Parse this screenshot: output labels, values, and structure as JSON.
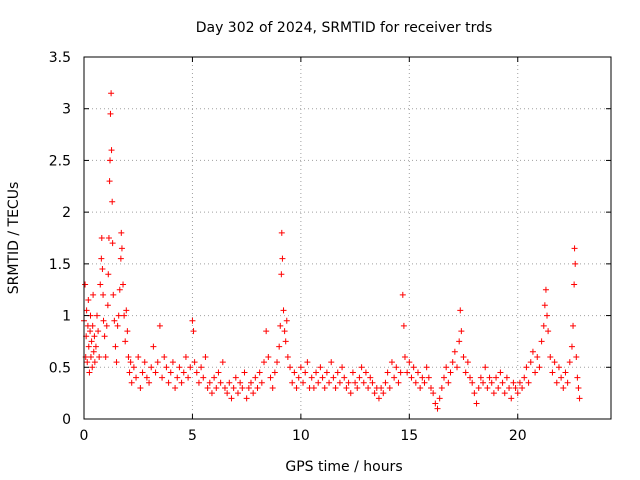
{
  "chart_data": {
    "type": "scatter",
    "title": "Day 302 of 2024, SRMTID for receiver trds",
    "xlabel": "GPS time / hours",
    "ylabel": "SRMTID / TECUs",
    "xlim": [
      0,
      24.3
    ],
    "ylim": [
      0,
      3.5
    ],
    "xticks": [
      "0",
      "5",
      "10",
      "15",
      "20"
    ],
    "xtick_values": [
      0,
      5,
      10,
      15,
      20
    ],
    "yticks": [
      "0",
      "0.5",
      "1",
      "1.5",
      "2",
      "2.5",
      "3",
      "3.5"
    ],
    "ytick_values": [
      0,
      0.5,
      1,
      1.5,
      2,
      2.5,
      3,
      3.5
    ],
    "grid": true,
    "marker": "+",
    "color": "#ff0000",
    "series": [
      {
        "name": "SRMTID",
        "points": [
          [
            0.0,
            0.95
          ],
          [
            0.05,
            1.3
          ],
          [
            0.08,
            0.6
          ],
          [
            0.1,
            0.8
          ],
          [
            0.12,
            1.05
          ],
          [
            0.15,
            0.55
          ],
          [
            0.18,
            0.9
          ],
          [
            0.2,
            1.15
          ],
          [
            0.22,
            0.7
          ],
          [
            0.25,
            0.45
          ],
          [
            0.28,
            0.85
          ],
          [
            0.3,
            1.0
          ],
          [
            0.32,
            0.6
          ],
          [
            0.35,
            0.75
          ],
          [
            0.38,
            0.5
          ],
          [
            0.4,
            0.9
          ],
          [
            0.42,
            1.2
          ],
          [
            0.45,
            0.65
          ],
          [
            0.48,
            0.8
          ],
          [
            0.5,
            0.55
          ],
          [
            0.55,
            0.7
          ],
          [
            0.6,
            1.0
          ],
          [
            0.65,
            0.85
          ],
          [
            0.7,
            0.6
          ],
          [
            0.75,
            1.3
          ],
          [
            0.8,
            1.55
          ],
          [
            0.82,
            1.75
          ],
          [
            0.85,
            1.45
          ],
          [
            0.88,
            1.2
          ],
          [
            0.9,
            0.95
          ],
          [
            0.95,
            0.8
          ],
          [
            1.0,
            0.6
          ],
          [
            1.05,
            0.9
          ],
          [
            1.1,
            1.1
          ],
          [
            1.12,
            1.4
          ],
          [
            1.15,
            1.75
          ],
          [
            1.18,
            2.3
          ],
          [
            1.2,
            2.5
          ],
          [
            1.22,
            2.95
          ],
          [
            1.25,
            3.15
          ],
          [
            1.27,
            2.6
          ],
          [
            1.3,
            2.1
          ],
          [
            1.32,
            1.7
          ],
          [
            1.35,
            1.2
          ],
          [
            1.4,
            0.95
          ],
          [
            1.45,
            0.7
          ],
          [
            1.5,
            0.55
          ],
          [
            1.55,
            0.9
          ],
          [
            1.6,
            1.0
          ],
          [
            1.65,
            1.25
          ],
          [
            1.7,
            1.55
          ],
          [
            1.72,
            1.8
          ],
          [
            1.75,
            1.65
          ],
          [
            1.8,
            1.3
          ],
          [
            1.85,
            1.0
          ],
          [
            1.9,
            0.75
          ],
          [
            1.95,
            1.05
          ],
          [
            2.0,
            0.85
          ],
          [
            2.05,
            0.6
          ],
          [
            2.1,
            0.45
          ],
          [
            2.15,
            0.55
          ],
          [
            2.2,
            0.35
          ],
          [
            2.3,
            0.5
          ],
          [
            2.4,
            0.4
          ],
          [
            2.5,
            0.6
          ],
          [
            2.6,
            0.3
          ],
          [
            2.7,
            0.45
          ],
          [
            2.8,
            0.55
          ],
          [
            2.9,
            0.4
          ],
          [
            3.0,
            0.35
          ],
          [
            3.1,
            0.5
          ],
          [
            3.2,
            0.7
          ],
          [
            3.3,
            0.45
          ],
          [
            3.4,
            0.55
          ],
          [
            3.5,
            0.9
          ],
          [
            3.6,
            0.4
          ],
          [
            3.7,
            0.6
          ],
          [
            3.8,
            0.5
          ],
          [
            3.9,
            0.35
          ],
          [
            4.0,
            0.45
          ],
          [
            4.1,
            0.55
          ],
          [
            4.2,
            0.3
          ],
          [
            4.3,
            0.4
          ],
          [
            4.4,
            0.5
          ],
          [
            4.5,
            0.35
          ],
          [
            4.6,
            0.45
          ],
          [
            4.7,
            0.6
          ],
          [
            4.8,
            0.4
          ],
          [
            4.9,
            0.5
          ],
          [
            5.0,
            0.95
          ],
          [
            5.05,
            0.85
          ],
          [
            5.1,
            0.55
          ],
          [
            5.2,
            0.45
          ],
          [
            5.3,
            0.35
          ],
          [
            5.4,
            0.5
          ],
          [
            5.5,
            0.4
          ],
          [
            5.6,
            0.6
          ],
          [
            5.7,
            0.3
          ],
          [
            5.8,
            0.35
          ],
          [
            5.9,
            0.25
          ],
          [
            6.0,
            0.4
          ],
          [
            6.1,
            0.3
          ],
          [
            6.2,
            0.45
          ],
          [
            6.3,
            0.35
          ],
          [
            6.4,
            0.55
          ],
          [
            6.5,
            0.3
          ],
          [
            6.6,
            0.25
          ],
          [
            6.7,
            0.35
          ],
          [
            6.8,
            0.2
          ],
          [
            6.9,
            0.3
          ],
          [
            7.0,
            0.4
          ],
          [
            7.1,
            0.25
          ],
          [
            7.2,
            0.35
          ],
          [
            7.3,
            0.3
          ],
          [
            7.4,
            0.45
          ],
          [
            7.5,
            0.2
          ],
          [
            7.6,
            0.3
          ],
          [
            7.7,
            0.35
          ],
          [
            7.8,
            0.25
          ],
          [
            7.9,
            0.4
          ],
          [
            8.0,
            0.3
          ],
          [
            8.1,
            0.45
          ],
          [
            8.2,
            0.35
          ],
          [
            8.3,
            0.55
          ],
          [
            8.4,
            0.85
          ],
          [
            8.5,
            0.6
          ],
          [
            8.6,
            0.4
          ],
          [
            8.7,
            0.3
          ],
          [
            8.8,
            0.45
          ],
          [
            8.9,
            0.55
          ],
          [
            9.0,
            0.7
          ],
          [
            9.05,
            0.9
          ],
          [
            9.1,
            1.4
          ],
          [
            9.12,
            1.8
          ],
          [
            9.15,
            1.55
          ],
          [
            9.2,
            1.05
          ],
          [
            9.25,
            0.85
          ],
          [
            9.3,
            0.75
          ],
          [
            9.35,
            0.95
          ],
          [
            9.4,
            0.6
          ],
          [
            9.5,
            0.5
          ],
          [
            9.6,
            0.35
          ],
          [
            9.7,
            0.45
          ],
          [
            9.8,
            0.3
          ],
          [
            9.9,
            0.4
          ],
          [
            10.0,
            0.5
          ],
          [
            10.1,
            0.35
          ],
          [
            10.2,
            0.45
          ],
          [
            10.3,
            0.55
          ],
          [
            10.4,
            0.3
          ],
          [
            10.5,
            0.4
          ],
          [
            10.6,
            0.3
          ],
          [
            10.7,
            0.45
          ],
          [
            10.8,
            0.35
          ],
          [
            10.9,
            0.5
          ],
          [
            11.0,
            0.4
          ],
          [
            11.1,
            0.3
          ],
          [
            11.2,
            0.45
          ],
          [
            11.3,
            0.35
          ],
          [
            11.4,
            0.55
          ],
          [
            11.5,
            0.4
          ],
          [
            11.6,
            0.3
          ],
          [
            11.7,
            0.45
          ],
          [
            11.8,
            0.35
          ],
          [
            11.9,
            0.5
          ],
          [
            12.0,
            0.4
          ],
          [
            12.1,
            0.3
          ],
          [
            12.2,
            0.35
          ],
          [
            12.3,
            0.25
          ],
          [
            12.4,
            0.45
          ],
          [
            12.5,
            0.35
          ],
          [
            12.6,
            0.3
          ],
          [
            12.7,
            0.4
          ],
          [
            12.8,
            0.5
          ],
          [
            12.9,
            0.35
          ],
          [
            13.0,
            0.45
          ],
          [
            13.1,
            0.3
          ],
          [
            13.2,
            0.4
          ],
          [
            13.3,
            0.35
          ],
          [
            13.4,
            0.25
          ],
          [
            13.5,
            0.3
          ],
          [
            13.6,
            0.2
          ],
          [
            13.7,
            0.3
          ],
          [
            13.8,
            0.25
          ],
          [
            13.9,
            0.35
          ],
          [
            14.0,
            0.45
          ],
          [
            14.1,
            0.3
          ],
          [
            14.2,
            0.55
          ],
          [
            14.3,
            0.4
          ],
          [
            14.4,
            0.5
          ],
          [
            14.5,
            0.35
          ],
          [
            14.6,
            0.45
          ],
          [
            14.7,
            1.2
          ],
          [
            14.75,
            0.9
          ],
          [
            14.8,
            0.6
          ],
          [
            14.9,
            0.45
          ],
          [
            15.0,
            0.55
          ],
          [
            15.1,
            0.4
          ],
          [
            15.2,
            0.5
          ],
          [
            15.3,
            0.35
          ],
          [
            15.4,
            0.45
          ],
          [
            15.5,
            0.3
          ],
          [
            15.6,
            0.4
          ],
          [
            15.7,
            0.35
          ],
          [
            15.8,
            0.5
          ],
          [
            15.9,
            0.4
          ],
          [
            16.0,
            0.3
          ],
          [
            16.1,
            0.25
          ],
          [
            16.2,
            0.15
          ],
          [
            16.3,
            0.1
          ],
          [
            16.4,
            0.2
          ],
          [
            16.5,
            0.3
          ],
          [
            16.6,
            0.4
          ],
          [
            16.7,
            0.5
          ],
          [
            16.8,
            0.35
          ],
          [
            16.9,
            0.45
          ],
          [
            17.0,
            0.55
          ],
          [
            17.1,
            0.65
          ],
          [
            17.2,
            0.5
          ],
          [
            17.3,
            0.75
          ],
          [
            17.35,
            1.05
          ],
          [
            17.4,
            0.85
          ],
          [
            17.5,
            0.6
          ],
          [
            17.6,
            0.45
          ],
          [
            17.7,
            0.55
          ],
          [
            17.8,
            0.4
          ],
          [
            17.9,
            0.35
          ],
          [
            18.0,
            0.25
          ],
          [
            18.1,
            0.15
          ],
          [
            18.2,
            0.3
          ],
          [
            18.3,
            0.4
          ],
          [
            18.4,
            0.35
          ],
          [
            18.5,
            0.5
          ],
          [
            18.6,
            0.3
          ],
          [
            18.7,
            0.4
          ],
          [
            18.8,
            0.35
          ],
          [
            18.9,
            0.25
          ],
          [
            19.0,
            0.4
          ],
          [
            19.1,
            0.3
          ],
          [
            19.2,
            0.45
          ],
          [
            19.3,
            0.35
          ],
          [
            19.4,
            0.25
          ],
          [
            19.5,
            0.4
          ],
          [
            19.6,
            0.3
          ],
          [
            19.7,
            0.2
          ],
          [
            19.8,
            0.35
          ],
          [
            19.9,
            0.3
          ],
          [
            20.0,
            0.25
          ],
          [
            20.1,
            0.35
          ],
          [
            20.2,
            0.3
          ],
          [
            20.3,
            0.4
          ],
          [
            20.4,
            0.5
          ],
          [
            20.5,
            0.35
          ],
          [
            20.6,
            0.55
          ],
          [
            20.7,
            0.65
          ],
          [
            20.8,
            0.45
          ],
          [
            20.9,
            0.6
          ],
          [
            21.0,
            0.5
          ],
          [
            21.1,
            0.75
          ],
          [
            21.2,
            0.9
          ],
          [
            21.25,
            1.1
          ],
          [
            21.3,
            1.25
          ],
          [
            21.35,
            1.0
          ],
          [
            21.4,
            0.85
          ],
          [
            21.5,
            0.6
          ],
          [
            21.6,
            0.45
          ],
          [
            21.7,
            0.55
          ],
          [
            21.8,
            0.35
          ],
          [
            21.9,
            0.5
          ],
          [
            22.0,
            0.4
          ],
          [
            22.1,
            0.3
          ],
          [
            22.2,
            0.45
          ],
          [
            22.3,
            0.35
          ],
          [
            22.4,
            0.55
          ],
          [
            22.5,
            0.7
          ],
          [
            22.55,
            0.9
          ],
          [
            22.6,
            1.3
          ],
          [
            22.62,
            1.65
          ],
          [
            22.65,
            1.5
          ],
          [
            22.7,
            0.6
          ],
          [
            22.75,
            0.4
          ],
          [
            22.8,
            0.3
          ],
          [
            22.85,
            0.2
          ]
        ]
      }
    ]
  }
}
